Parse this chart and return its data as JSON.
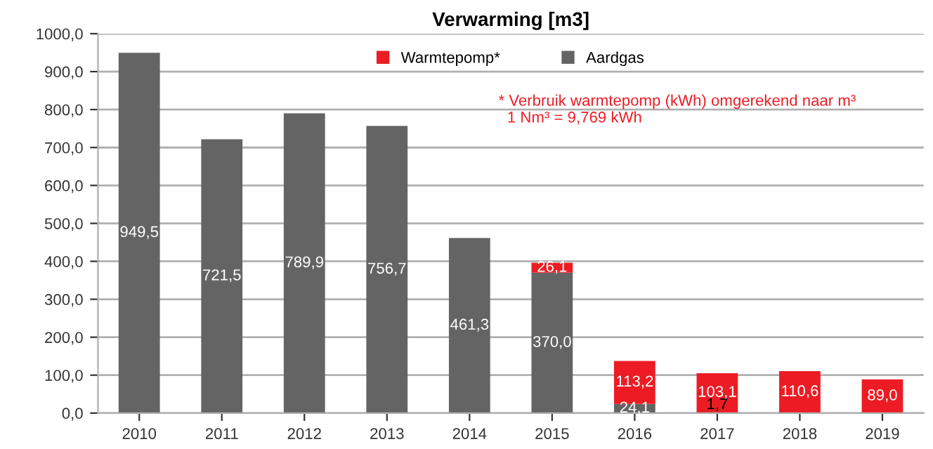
{
  "chart_data": {
    "type": "bar",
    "title": "Verwarming [m3]",
    "stacked": true,
    "categories": [
      "2010",
      "2011",
      "2012",
      "2013",
      "2014",
      "2015",
      "2016",
      "2017",
      "2018",
      "2019"
    ],
    "series": [
      {
        "name": "Aardgas",
        "color": "#646464",
        "values": [
          949.5,
          721.5,
          789.9,
          756.7,
          461.3,
          370.0,
          24.1,
          1.7,
          null,
          null
        ],
        "value_labels": [
          "949,5",
          "721,5",
          "789,9",
          "756,7",
          "461,3",
          "370,0",
          "24,1",
          "1,7",
          null,
          null
        ]
      },
      {
        "name": "Warmtepomp*",
        "color": "#ed1c24",
        "values": [
          null,
          null,
          null,
          null,
          null,
          26.1,
          113.2,
          103.1,
          110.6,
          89.0
        ],
        "value_labels": [
          null,
          null,
          null,
          null,
          null,
          "26,1",
          "113,2",
          "103,1",
          "110,6",
          "89,0"
        ]
      }
    ],
    "ylim": [
      0,
      1000
    ],
    "yticks": [
      {
        "value": 0,
        "label": "0,0"
      },
      {
        "value": 100,
        "label": "100,0"
      },
      {
        "value": 200,
        "label": "200,0"
      },
      {
        "value": 300,
        "label": "300,0"
      },
      {
        "value": 400,
        "label": "400,0"
      },
      {
        "value": 500,
        "label": "500,0"
      },
      {
        "value": 600,
        "label": "600,0"
      },
      {
        "value": 700,
        "label": "700,0"
      },
      {
        "value": 800,
        "label": "800,0"
      },
      {
        "value": 900,
        "label": "900,0"
      },
      {
        "value": 1000,
        "label": "1000,0"
      }
    ],
    "grid": "y",
    "legend": "top",
    "annotations": [
      "* Verbruik warmtepomp (kWh) omgerekend naar m³\n  1 Nm³ = 9,769 kWh"
    ]
  }
}
